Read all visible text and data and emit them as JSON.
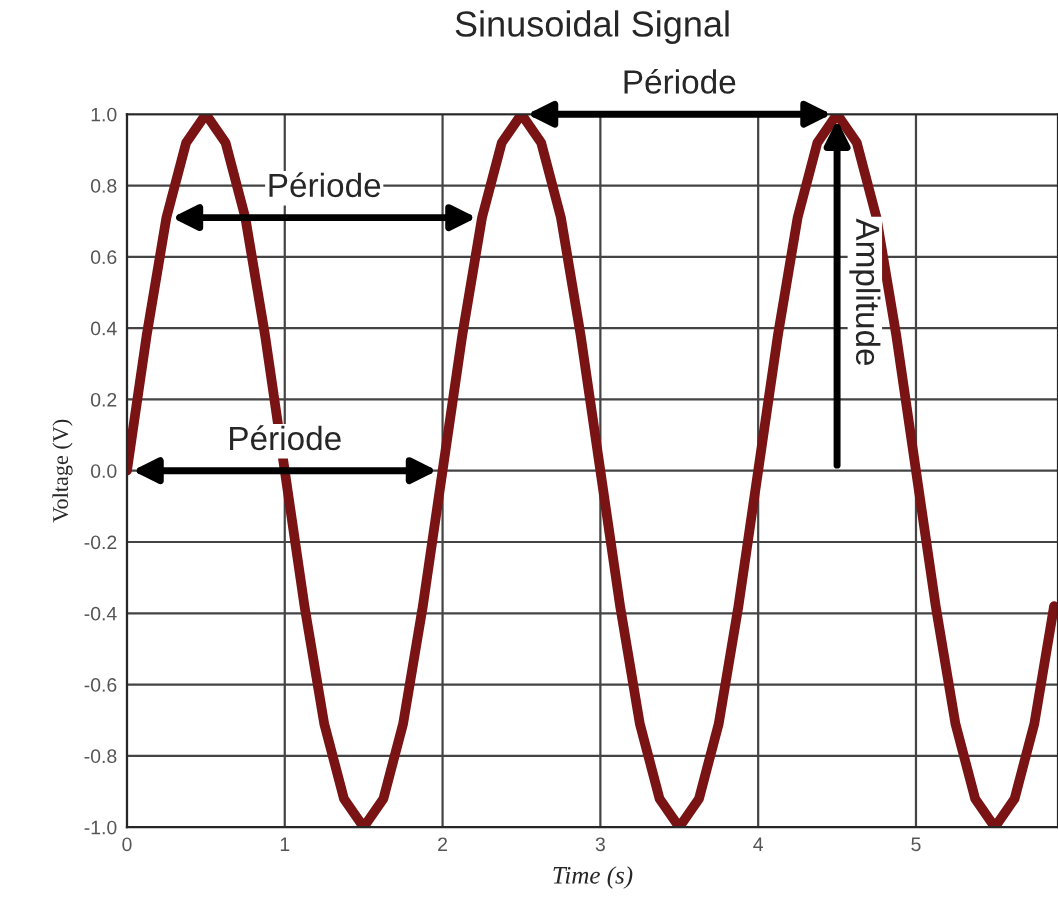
{
  "chart_data": {
    "type": "line",
    "title": "Sinusoidal Signal",
    "xlabel": "Time (s)",
    "ylabel": "Voltage (V)",
    "x": [
      0,
      0.125,
      0.25,
      0.375,
      0.5,
      0.625,
      0.75,
      0.875,
      1,
      1.125,
      1.25,
      1.375,
      1.5,
      1.625,
      1.75,
      1.875,
      2,
      2.125,
      2.25,
      2.375,
      2.5,
      2.625,
      2.75,
      2.875,
      3,
      3.125,
      3.25,
      3.375,
      3.5,
      3.625,
      3.75,
      3.875,
      4,
      4.125,
      4.25,
      4.375,
      4.5,
      4.625,
      4.75,
      4.875,
      5,
      5.125,
      5.25,
      5.375,
      5.5,
      5.625,
      5.75,
      5.875
    ],
    "series": [
      {
        "color": "#7a1414",
        "values": [
          0,
          0.38,
          0.71,
          0.92,
          1,
          0.92,
          0.71,
          0.38,
          0,
          -0.38,
          -0.71,
          -0.92,
          -1,
          -0.92,
          -0.71,
          -0.38,
          0,
          0.38,
          0.71,
          0.92,
          1,
          0.92,
          0.71,
          0.38,
          0,
          -0.38,
          -0.71,
          -0.92,
          -1,
          -0.92,
          -0.71,
          -0.38,
          0,
          0.38,
          0.71,
          0.92,
          1,
          0.92,
          0.71,
          0.38,
          0,
          -0.38,
          -0.71,
          -0.92,
          -1,
          -0.92,
          -0.71,
          -0.38
        ]
      }
    ],
    "xlim": [
      0,
      5.9
    ],
    "xticks": [
      0,
      1,
      2,
      3,
      4,
      5
    ],
    "ylim": [
      -1.0,
      1.0
    ],
    "yticks": [
      {
        "value": -1.0,
        "label": "-1.0"
      },
      {
        "value": -0.8,
        "label": "-0.8"
      },
      {
        "value": -0.6,
        "label": "-0.6"
      },
      {
        "value": -0.4,
        "label": "-0.4"
      },
      {
        "value": -0.2,
        "label": "-0.2"
      },
      {
        "value": 0.0,
        "label": "0.0"
      },
      {
        "value": 0.2,
        "label": "0.2"
      },
      {
        "value": 0.4,
        "label": "0.4"
      },
      {
        "value": 0.6,
        "label": "0.6"
      },
      {
        "value": 0.8,
        "label": "0.8"
      },
      {
        "value": 1.0,
        "label": "1.0"
      }
    ],
    "grid": true,
    "marker": "none",
    "line_style": "solid",
    "annotations": [
      "Période",
      "Période",
      "Période",
      "Amplitude"
    ]
  }
}
